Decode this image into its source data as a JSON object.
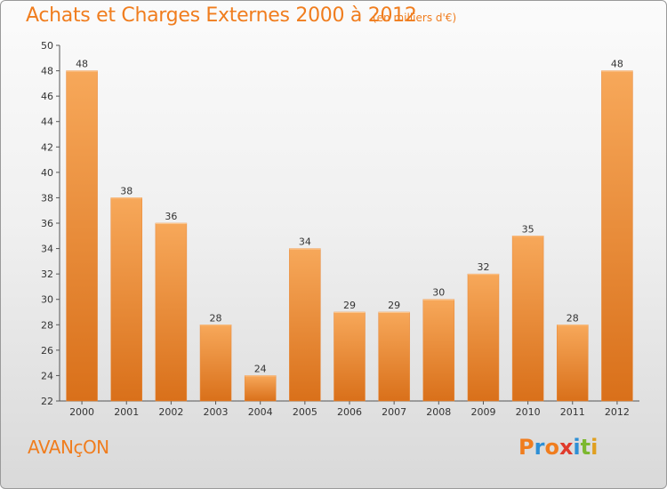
{
  "header": {
    "title": "Achats et Charges Externes 2000 à 2012",
    "subtitle": "(en milliers d'€)"
  },
  "footer": {
    "commune": "AVANçON",
    "logo_text": "Proxiti"
  },
  "colors": {
    "accent": "#f07d1e",
    "bar_top": "#f7a85a",
    "bar_bottom": "#d9701a",
    "logo_letters": [
      "#f07d1e",
      "#2d8fd5",
      "#f07d1e",
      "#e03a2c",
      "#2d8fd5",
      "#7cb82f",
      "#e0a020"
    ]
  },
  "chart_data": {
    "type": "bar",
    "categories": [
      "2000",
      "2001",
      "2002",
      "2003",
      "2004",
      "2005",
      "2006",
      "2007",
      "2008",
      "2009",
      "2010",
      "2011",
      "2012"
    ],
    "values": [
      48,
      38,
      36,
      28,
      24,
      34,
      29,
      29,
      30,
      32,
      35,
      28,
      48
    ],
    "title": "Achats et Charges Externes 2000 à 2012",
    "ylim": [
      22,
      50
    ],
    "yticks": [
      22,
      24,
      26,
      28,
      30,
      32,
      34,
      36,
      38,
      40,
      42,
      44,
      46,
      48,
      50
    ],
    "grid": false,
    "data_labels": true
  }
}
